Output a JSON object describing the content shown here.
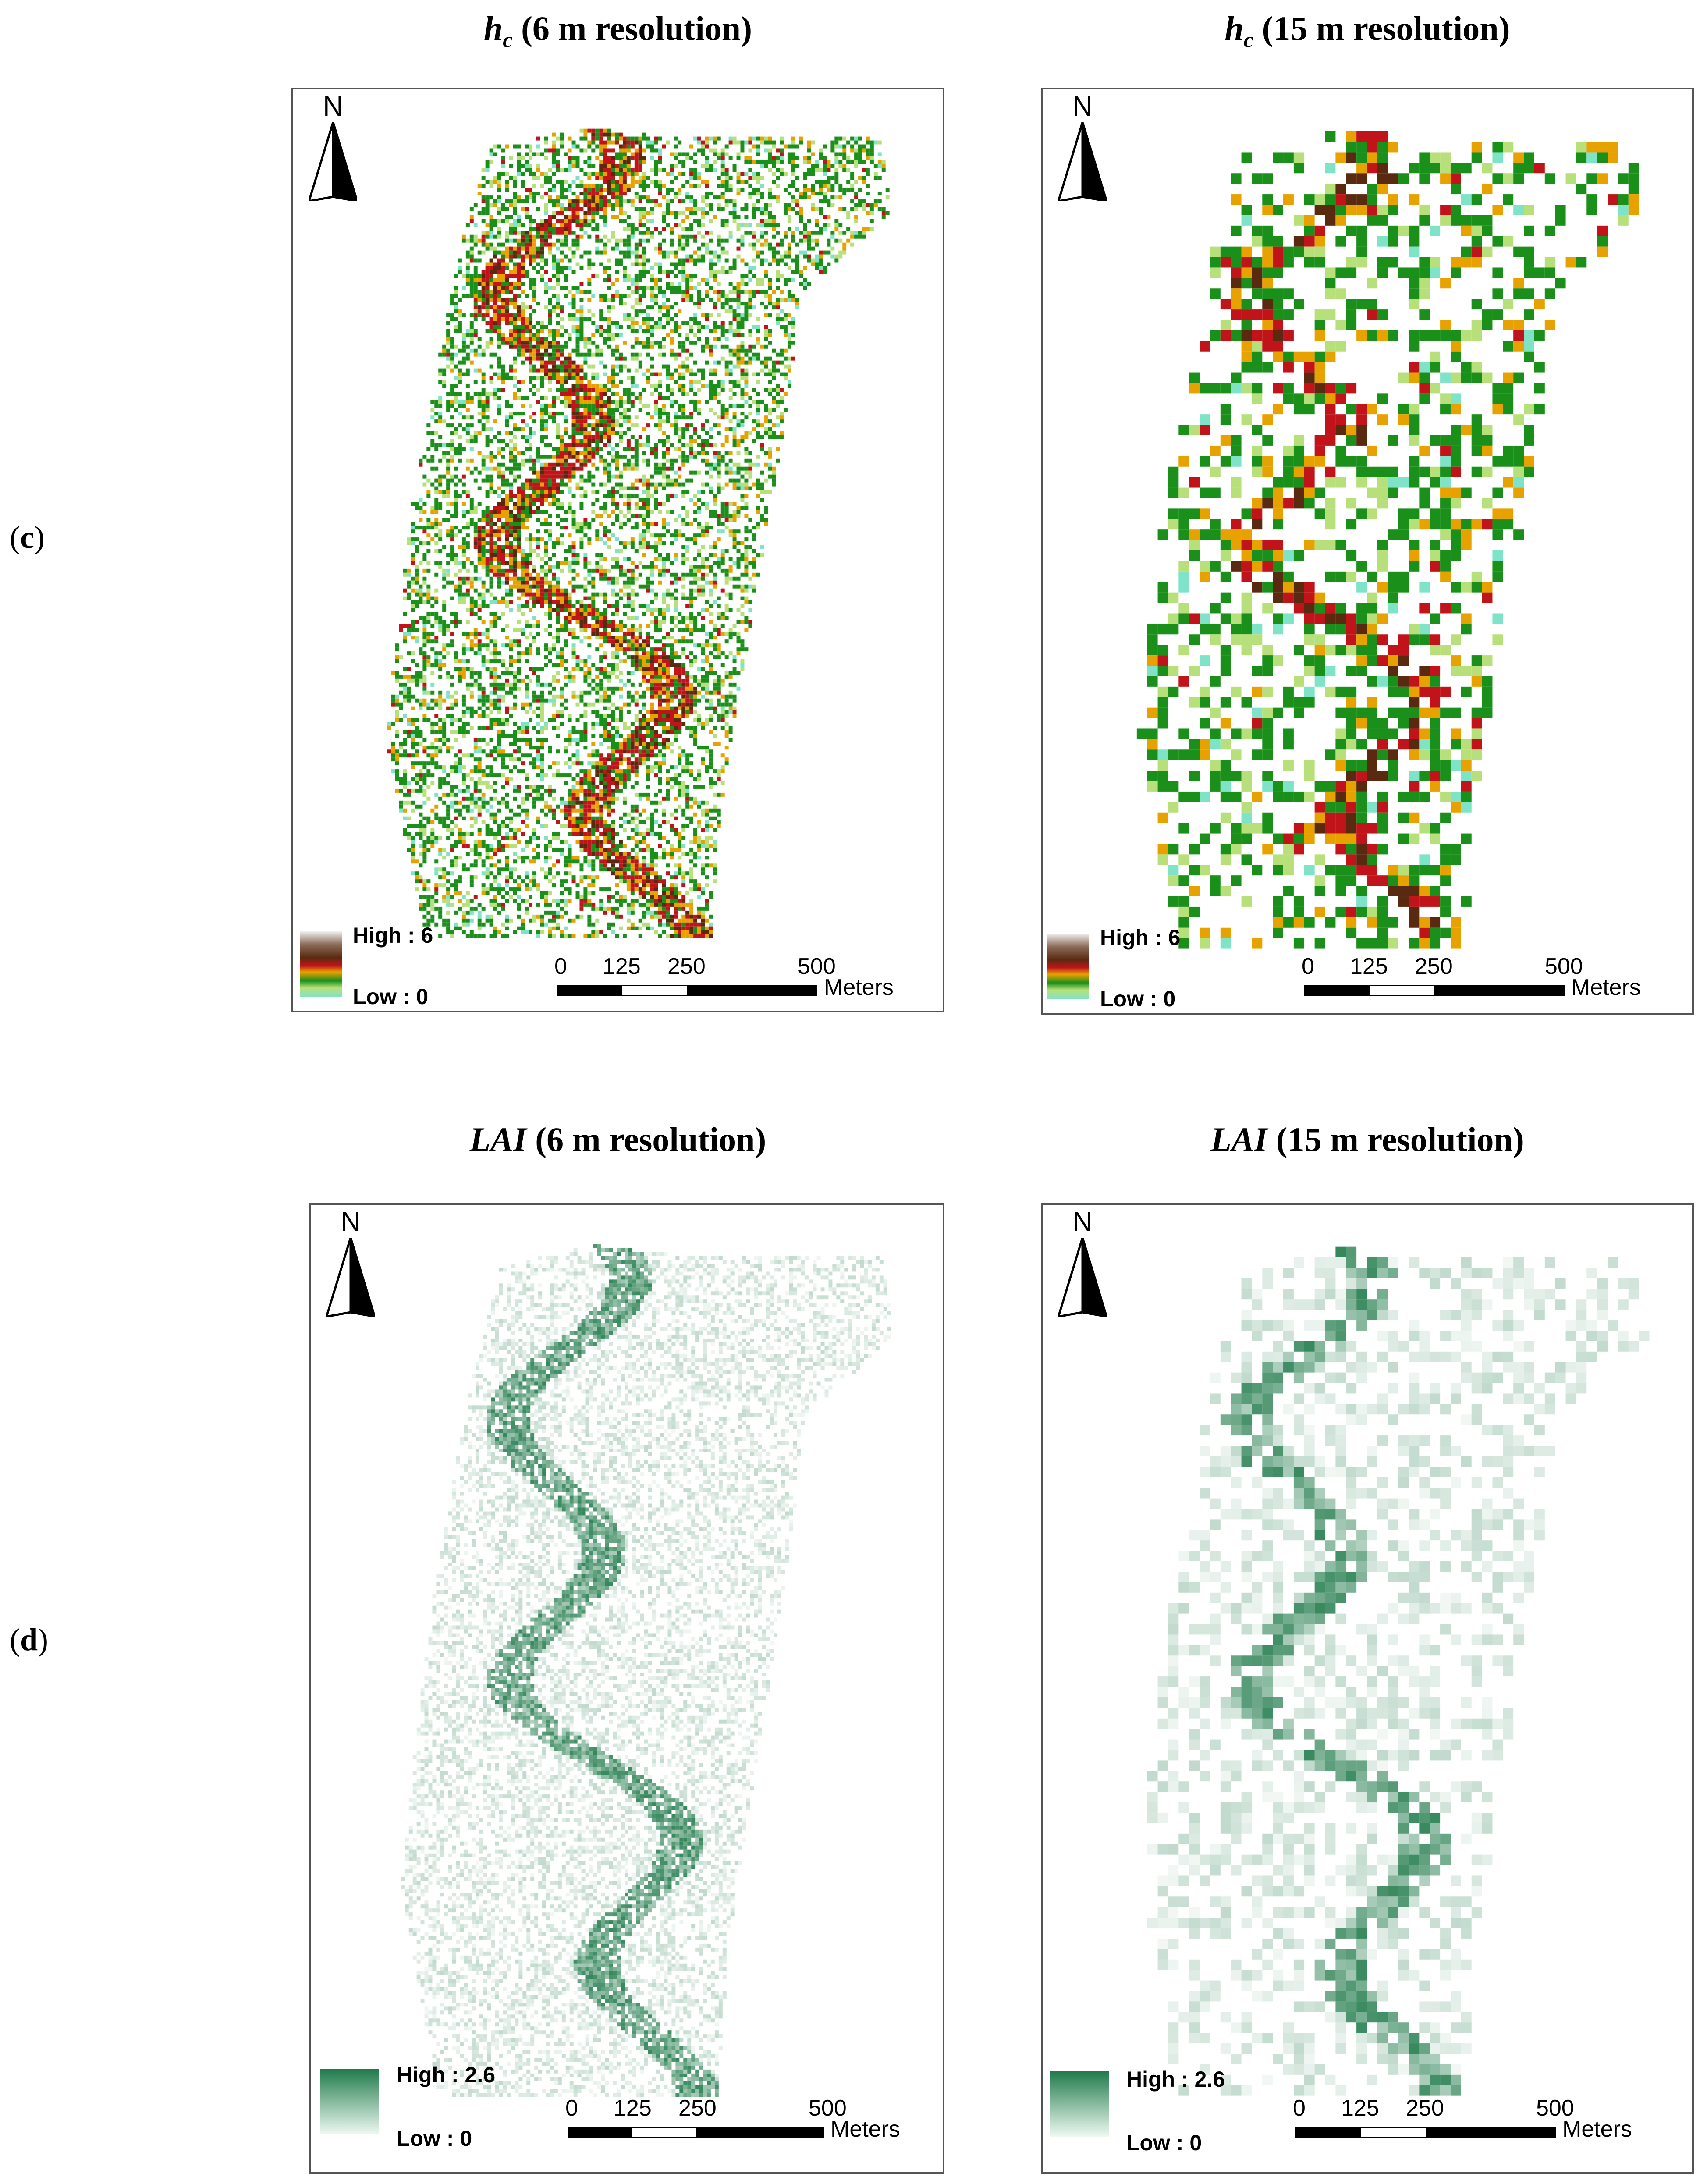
{
  "row_labels": [
    {
      "open": "(",
      "letter": "c",
      "close": ")"
    },
    {
      "open": "(",
      "letter": "d",
      "close": ")"
    }
  ],
  "panels": [
    {
      "var": "h",
      "sub": "c",
      "rest": " (6 m resolution)",
      "legend_high": "High : 6",
      "legend_low": "Low : 0",
      "palette": "hc",
      "cell": 6
    },
    {
      "var": "h",
      "sub": "c",
      "rest": " (15 m resolution)",
      "legend_high": "High : 6",
      "legend_low": "Low : 0",
      "palette": "hc",
      "cell": 15
    },
    {
      "var": "LAI",
      "sub": "",
      "rest": " (6 m resolution)",
      "legend_high": "High : 2.6",
      "legend_low": "Low : 0",
      "palette": "lai",
      "cell": 6
    },
    {
      "var": "LAI",
      "sub": "",
      "rest": " (15 m resolution)",
      "legend_high": "High : 2.6",
      "legend_low": "Low : 0",
      "palette": "lai",
      "cell": 15
    }
  ],
  "north_label": "N",
  "scale": {
    "ticks": [
      "0",
      "125",
      "250",
      "500"
    ],
    "unit": "Meters"
  },
  "colors": {
    "hc_ramp": [
      "#8b8b8b",
      "#5a2a10",
      "#c0141a",
      "#e8a200",
      "#1a8f1a",
      "#b8e07a",
      "#7fe3c8"
    ],
    "lai_high": "#1f7a4a",
    "lai_low": "#e8f7ef"
  }
}
